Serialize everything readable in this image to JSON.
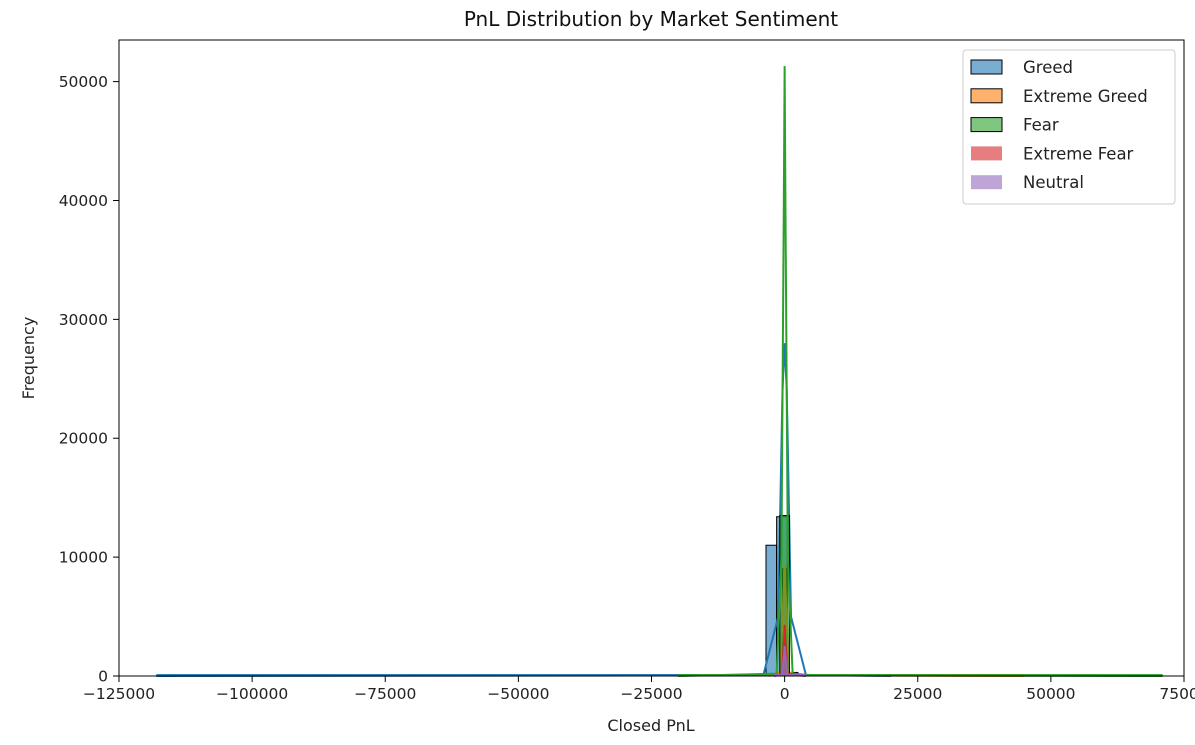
{
  "chart_data": {
    "type": "bar",
    "title": "PnL Distribution by Market Sentiment",
    "xlabel": "Closed PnL",
    "ylabel": "Frequency",
    "xlim": [
      -125000,
      75000
    ],
    "ylim": [
      0,
      53500
    ],
    "xticks": [
      -125000,
      -100000,
      -75000,
      -50000,
      -25000,
      0,
      25000,
      50000,
      75000
    ],
    "xtick_labels": [
      "−125000",
      "−100000",
      "−75000",
      "−50000",
      "−25000",
      "0",
      "25000",
      "50000",
      "75000"
    ],
    "yticks": [
      0,
      10000,
      20000,
      30000,
      40000,
      50000
    ],
    "ytick_labels": [
      "0",
      "10000",
      "20000",
      "30000",
      "40000",
      "50000"
    ],
    "grid": false,
    "legend_position": "top-right",
    "series": [
      {
        "name": "Greed",
        "color": "#1f77b4",
        "range": [
          -118000,
          0
        ],
        "bars": [
          {
            "x0": -3500,
            "x1": -1500,
            "y": 11000
          },
          {
            "x0": -1500,
            "x1": 500,
            "y": 13400
          },
          {
            "x0": 500,
            "x1": 2500,
            "y": 300
          }
        ],
        "kde": [
          [
            -118000,
            0
          ],
          [
            -4000,
            60
          ],
          [
            -1200,
            5000
          ],
          [
            -400,
            24000
          ],
          [
            0,
            28000
          ],
          [
            400,
            24000
          ],
          [
            1200,
            5000
          ],
          [
            4000,
            80
          ],
          [
            20000,
            0
          ]
        ]
      },
      {
        "name": "Extreme Greed",
        "color": "#ff7f0e",
        "range": [
          -3000,
          45000
        ],
        "bars": [
          {
            "x0": -400,
            "x1": 400,
            "y": 9000
          }
        ],
        "kde": [
          [
            -3000,
            0
          ],
          [
            -800,
            300
          ],
          [
            -200,
            7000
          ],
          [
            0,
            9300
          ],
          [
            200,
            7000
          ],
          [
            800,
            300
          ],
          [
            3000,
            60
          ],
          [
            45000,
            0
          ]
        ]
      },
      {
        "name": "Fear",
        "color": "#2ca02c",
        "range": [
          -20000,
          71000
        ],
        "bars": [
          {
            "x0": -900,
            "x1": 900,
            "y": 13500
          }
        ],
        "kde": [
          [
            -20000,
            0
          ],
          [
            -1500,
            200
          ],
          [
            -600,
            10000
          ],
          [
            -150,
            40000
          ],
          [
            0,
            51300
          ],
          [
            150,
            40000
          ],
          [
            600,
            10000
          ],
          [
            1500,
            200
          ],
          [
            5000,
            60
          ],
          [
            71000,
            0
          ]
        ]
      },
      {
        "name": "Extreme Fear",
        "color": "#d62728",
        "range": [
          -2000,
          4000
        ],
        "bars": [
          {
            "x0": -200,
            "x1": 200,
            "y": 4300
          }
        ],
        "kde": [
          [
            -2000,
            0
          ],
          [
            -500,
            200
          ],
          [
            -100,
            3000
          ],
          [
            0,
            4300
          ],
          [
            100,
            3000
          ],
          [
            500,
            200
          ],
          [
            4000,
            0
          ]
        ]
      },
      {
        "name": "Neutral",
        "color": "#9467bd",
        "range": [
          -2000,
          4000
        ],
        "bars": [
          {
            "x0": -200,
            "x1": 200,
            "y": 2500
          }
        ],
        "kde": [
          [
            -2000,
            0
          ],
          [
            -500,
            120
          ],
          [
            -100,
            1800
          ],
          [
            0,
            2500
          ],
          [
            100,
            1800
          ],
          [
            500,
            120
          ],
          [
            4000,
            0
          ]
        ]
      }
    ]
  }
}
